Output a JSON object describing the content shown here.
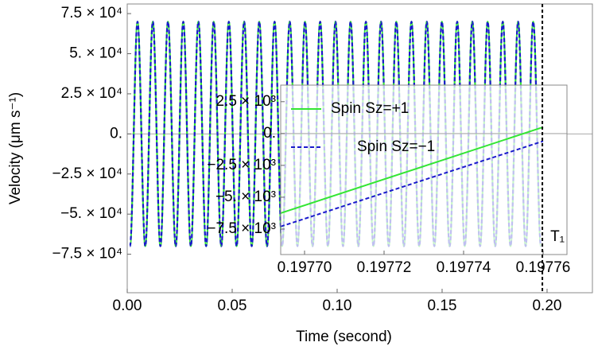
{
  "chart_data": [
    {
      "type": "line",
      "xlabel": "Time (second)",
      "ylabel": "Velocity (μm s⁻¹)",
      "xlim": [
        0,
        0.2216
      ],
      "ylim": [
        -99000,
        81000
      ],
      "xticks": [
        {
          "value": 0,
          "label": "0.00"
        },
        0.05,
        {
          "value": 0.1,
          "label": "0.10"
        },
        0.15,
        {
          "value": 0.2,
          "label": "0.20"
        }
      ],
      "yticks": [
        {
          "value": 75000,
          "label": "7.5 × 10⁴"
        },
        {
          "value": 50000,
          "label": "5. × 10⁴"
        },
        {
          "value": 25000,
          "label": "2.5 × 10⁴"
        },
        {
          "value": 0,
          "label": "0."
        },
        {
          "value": -25000,
          "label": "−2.5 × 10⁴"
        },
        {
          "value": -50000,
          "label": "−5. × 10⁴"
        },
        {
          "value": -75000,
          "label": "−7.5 × 10⁴"
        }
      ],
      "zero_line": true,
      "t1": 0.19776,
      "t1_label": "T₁",
      "x": [
        0.0013,
        0.0049,
        0.0086,
        0.0122,
        0.0158,
        0.0194,
        0.0231,
        0.0267,
        0.0303,
        0.0339,
        0.0376,
        0.0412,
        0.0448,
        0.0484,
        0.0521,
        0.0557,
        0.0593,
        0.0629,
        0.0666,
        0.0702,
        0.0738,
        0.0774,
        0.0811,
        0.0847,
        0.0883,
        0.0919,
        0.0956,
        0.0992,
        0.1028,
        0.1064,
        0.1101,
        0.1137,
        0.1173,
        0.1209,
        0.1246,
        0.1282,
        0.1318,
        0.1354,
        0.1391,
        0.1427,
        0.1463,
        0.1499,
        0.1536,
        0.1572,
        0.1608,
        0.1644,
        0.1681,
        0.1717,
        0.1753,
        0.1789,
        0.1826,
        0.1862,
        0.1898,
        0.1934,
        0.1971
      ],
      "series": [
        {
          "color": "#33e633",
          "dashed": false,
          "values": [
            -70000,
            70000,
            -70000,
            70000,
            -70000,
            70000,
            -70000,
            70000,
            -70000,
            70000,
            -70000,
            70000,
            -70000,
            70000,
            -70000,
            70000,
            -70000,
            70000,
            -70000,
            70000,
            -70000,
            70000,
            -70000,
            70000,
            -70000,
            70000,
            -70000,
            70000,
            -70000,
            70000,
            -70000,
            70000,
            -70000,
            70000,
            -70000,
            70000,
            -70000,
            70000,
            -70000,
            70000,
            -70000,
            70000,
            -70000,
            70000,
            -70000,
            70000,
            -70000,
            70000,
            -70000,
            70000,
            -70000,
            70000,
            -70000,
            70000,
            -70000
          ]
        },
        {
          "color": "#1a1acc",
          "dashed": true,
          "values": [
            -70000,
            70000,
            -70000,
            70000,
            -70000,
            70000,
            -70000,
            70000,
            -70000,
            70000,
            -70000,
            70000,
            -70000,
            70000,
            -70000,
            70000,
            -70000,
            70000,
            -70000,
            70000,
            -70000,
            70000,
            -70000,
            70000,
            -70000,
            70000,
            -70000,
            70000,
            -70000,
            70000,
            -70000,
            70000,
            -70000,
            70000,
            -70000,
            70000,
            -70000,
            70000,
            -70000,
            70000,
            -70000,
            70000,
            -70000,
            70000,
            -70000,
            70000,
            -70000,
            70000,
            -70000,
            70000,
            -70000,
            70000,
            -70000,
            70000,
            -70000
          ]
        }
      ]
    },
    {
      "type": "line",
      "xlim": [
        0.197694,
        0.197766
      ],
      "ylim": [
        -9500,
        3800
      ],
      "xticks": [
        {
          "value": 0.1977,
          "label": "0.19770"
        },
        0.19772,
        0.19774,
        0.19776
      ],
      "yticks": [
        {
          "value": 2500,
          "label": "2.5 × 10³"
        },
        {
          "value": 0,
          "label": "0."
        },
        {
          "value": -2500,
          "label": "−2.5 × 10³"
        },
        {
          "value": -5000,
          "label": "−5. × 10³"
        },
        {
          "value": -7500,
          "label": "−7.5 × 10³"
        }
      ],
      "zero_line": true,
      "x": [
        0.197694,
        0.19776
      ],
      "series": [
        {
          "name": "Spin Sz=+1",
          "color": "#33e633",
          "dashed": false,
          "values": [
            -6250,
            500
          ]
        },
        {
          "name": "Spin Sz=−1",
          "color": "#1a1acc",
          "dashed": true,
          "values": [
            -7300,
            -600
          ]
        }
      ]
    }
  ]
}
